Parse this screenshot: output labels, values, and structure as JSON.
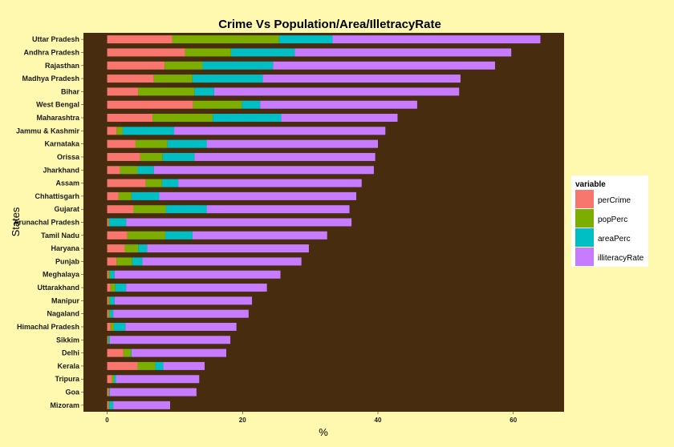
{
  "chart_data": {
    "type": "bar",
    "orientation": "horizontal",
    "stacked": true,
    "title": "Crime Vs Population/Area/IlletracyRate",
    "xlabel": "%",
    "ylabel": "States",
    "xlim": [
      -3.5,
      67.5
    ],
    "xticks": [
      0,
      20,
      40,
      60
    ],
    "legend_title": "variable",
    "legend_position": "right",
    "background": "#482c10",
    "categories": [
      "Uttar Pradesh",
      "Andhra Pradesh",
      "Rajasthan",
      "Madhya Pradesh",
      "Bihar",
      "West Bengal",
      "Maharashtra",
      "Jammu & Kashmir",
      "Karnataka",
      "Orissa",
      "Jharkhand",
      "Assam",
      "Chhattisgarh",
      "Gujarat",
      "Arunachal Pradesh",
      "Tamil Nadu",
      "Haryana",
      "Punjab",
      "Meghalaya",
      "Uttarakhand",
      "Manipur",
      "Nagaland",
      "Himachal Pradesh",
      "Sikkim",
      "Delhi",
      "Kerala",
      "Tripura",
      "Goa",
      "Mizoram"
    ],
    "series": [
      {
        "name": "perCrime",
        "color": "#f8766d",
        "values": [
          9.6,
          11.5,
          8.5,
          6.9,
          4.6,
          12.7,
          6.7,
          1.4,
          4.2,
          4.9,
          1.9,
          5.7,
          1.7,
          3.9,
          0.2,
          3.0,
          2.6,
          1.4,
          0.2,
          0.5,
          0.2,
          0.2,
          0.5,
          0.1,
          2.4,
          4.5,
          0.7,
          0.2,
          0.2
        ]
      },
      {
        "name": "popPerc",
        "color": "#7cae00",
        "values": [
          15.8,
          6.8,
          5.6,
          5.7,
          8.3,
          7.2,
          8.9,
          0.9,
          4.7,
          3.3,
          2.6,
          2.4,
          1.9,
          4.8,
          0.1,
          5.6,
          2.0,
          2.3,
          0.2,
          0.7,
          0.2,
          0.2,
          0.5,
          0.1,
          1.1,
          2.6,
          0.3,
          0.1,
          0.1
        ]
      },
      {
        "name": "areaPerc",
        "color": "#00bfc4",
        "values": [
          7.9,
          9.4,
          10.4,
          10.4,
          2.9,
          2.7,
          10.1,
          7.6,
          5.8,
          4.7,
          2.4,
          2.4,
          4.1,
          6.0,
          2.5,
          4.0,
          1.3,
          1.5,
          0.7,
          1.6,
          0.7,
          0.5,
          1.7,
          0.2,
          0.1,
          1.2,
          0.3,
          0.1,
          0.6
        ]
      },
      {
        "name": "illiteracyRate",
        "color": "#c77cff",
        "values": [
          30.7,
          32.0,
          32.8,
          29.2,
          36.2,
          23.2,
          17.2,
          31.2,
          25.3,
          26.7,
          32.5,
          27.1,
          29.1,
          21.1,
          33.3,
          19.9,
          23.9,
          23.5,
          24.5,
          20.8,
          20.3,
          20.0,
          16.4,
          17.8,
          14.0,
          6.1,
          12.3,
          12.8,
          8.4
        ]
      }
    ]
  }
}
